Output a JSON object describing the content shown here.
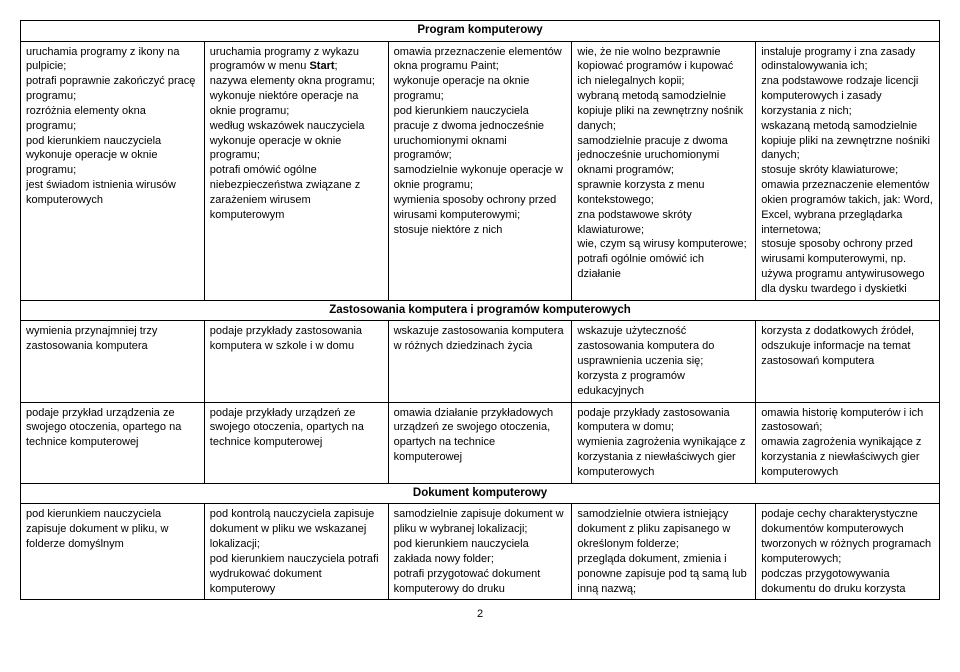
{
  "sections": [
    {
      "header": "Program komputerowy",
      "rows": [
        [
          "uruchamia programy z ikony na pulpicie;\npotrafi poprawnie zakończyć pracę programu;\nrozróżnia elementy okna programu;\npod kierunkiem nauczyciela wykonuje operacje w oknie programu;\njest świadom istnienia wirusów komputerowych",
          "uruchamia programy z wykazu programów w menu Start;\nnazywa elementy okna programu;\nwykonuje niektóre operacje na oknie programu;\nwedług wskazówek nauczyciela wykonuje operacje w oknie programu;\npotrafi omówić ogólne niebezpieczeństwa związane z zarażeniem wirusem komputerowym",
          "omawia przeznaczenie elementów okna programu Paint;\nwykonuje operacje na oknie programu;\npod kierunkiem nauczyciela pracuje z dwoma jednocześnie uruchomionymi oknami programów;\nsamodzielnie wykonuje operacje w oknie programu;\nwymienia sposoby ochrony przed wirusami komputerowymi;\nstosuje niektóre z nich",
          "wie, że nie wolno bezprawnie kopiować programów i kupować ich nielegalnych kopii;\nwybraną metodą samodzielnie kopiuje pliki na zewnętrzny nośnik danych;\nsamodzielnie pracuje z dwoma jednocześnie uruchomionymi oknami programów;\nsprawnie korzysta z menu kontekstowego;\nzna podstawowe skróty klawiaturowe;\nwie, czym są wirusy komputerowe;\npotrafi ogólnie omówić ich działanie",
          "instaluje programy i zna zasady odinstalowywania ich;\nzna podstawowe rodzaje licencji komputerowych i zasady korzystania z nich;\nwskazaną metodą samodzielnie kopiuje pliki na zewnętrzne nośniki danych;\nstosuje skróty klawiaturowe;\nomawia przeznaczenie elementów okien programów takich, jak: Word, Excel, wybrana przeglądarka internetowa;\nstosuje sposoby ochrony przed wirusami komputerowymi, np. używa programu antywirusowego dla dysku twardego i dyskietki"
        ]
      ]
    },
    {
      "header": "Zastosowania komputera i programów komputerowych",
      "rows": [
        [
          "wymienia przynajmniej trzy zastosowania komputera",
          "podaje przykłady zastosowania komputera w szkole i w domu",
          "wskazuje zastosowania komputera w różnych dziedzinach życia",
          "wskazuje użyteczność zastosowania komputera do usprawnienia uczenia się;\nkorzysta z programów edukacyjnych",
          "korzysta z dodatkowych źródeł, odszukuje informacje na temat zastosowań komputera"
        ],
        [
          "podaje przykład urządzenia ze swojego otoczenia, opartego na technice komputerowej",
          "podaje przykłady urządzeń ze swojego otoczenia, opartych na technice komputerowej",
          "omawia działanie przykładowych urządzeń ze swojego otoczenia, opartych na technice komputerowej",
          "podaje przykłady zastosowania komputera w domu;\nwymienia zagrożenia wynikające z korzystania z niewłaściwych gier komputerowych",
          "omawia historię komputerów i ich zastosowań;\nomawia zagrożenia wynikające z korzystania z niewłaściwych gier komputerowych"
        ]
      ]
    },
    {
      "header": "Dokument komputerowy",
      "rows": [
        [
          "pod kierunkiem nauczyciela zapisuje dokument w pliku, w folderze domyślnym",
          "pod kontrolą nauczyciela zapisuje dokument w pliku we wskazanej lokalizacji;\npod kierunkiem nauczyciela potrafi wydrukować dokument komputerowy",
          "samodzielnie zapisuje dokument w pliku w wybranej lokalizacji;\npod kierunkiem nauczyciela zakłada nowy folder;\npotrafi przygotować dokument komputerowy do druku",
          "samodzielnie otwiera istniejący dokument z pliku zapisanego w określonym folderze;\nprzegląda dokument, zmienia i ponowne zapisuje pod tą samą lub inną nazwą;",
          "podaje cechy charakterystyczne dokumentów komputerowych tworzonych w różnych programach komputerowych;\npodczas przygotowywania dokumentu do druku korzysta"
        ]
      ]
    }
  ],
  "bold_word": "Start",
  "page_number": "2",
  "column_count": 5
}
